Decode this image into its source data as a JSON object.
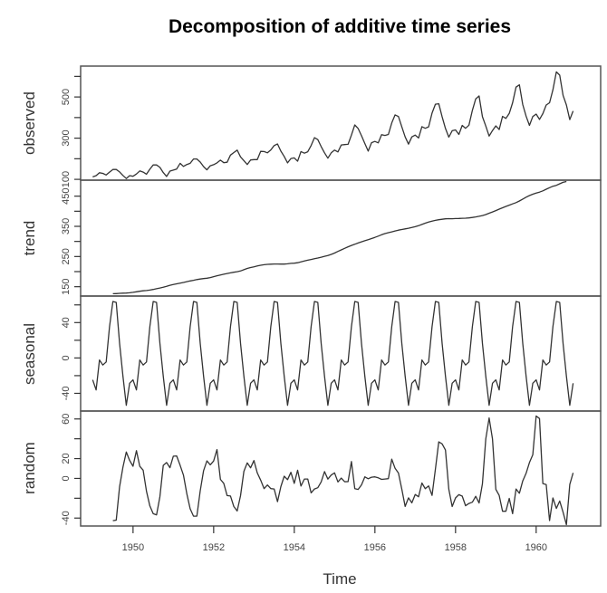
{
  "chart_data": {
    "type": "line",
    "title": "Decomposition of additive time series",
    "xlabel": "Time",
    "x_start": 1949.0,
    "x_step": 0.0833333,
    "xlim": [
      1948.7,
      1961.6
    ],
    "x_ticks": [
      1950,
      1952,
      1954,
      1956,
      1958,
      1960
    ],
    "x_tick_labels": [
      "1950",
      "1952",
      "1954",
      "1956",
      "1958",
      "1960"
    ],
    "grid": false,
    "colors": {
      "line": "#333333",
      "frame": "#555555"
    },
    "panels": [
      {
        "name": "observed",
        "ylabel": "observed",
        "ylim": [
          96,
          650
        ],
        "minor_ticks": [
          100,
          200,
          300,
          400,
          500,
          600
        ],
        "tick_labels": [
          {
            "value": 100,
            "label": "100"
          },
          {
            "value": 300,
            "label": "300"
          },
          {
            "value": 500,
            "label": "500"
          }
        ],
        "values": [
          112,
          118,
          132,
          129,
          121,
          135,
          148,
          148,
          136,
          119,
          104,
          118,
          115,
          126,
          141,
          135,
          125,
          149,
          170,
          170,
          158,
          133,
          114,
          140,
          145,
          150,
          178,
          163,
          172,
          178,
          199,
          199,
          184,
          162,
          146,
          166,
          171,
          180,
          193,
          181,
          183,
          218,
          230,
          242,
          209,
          191,
          172,
          194,
          196,
          196,
          236,
          235,
          229,
          243,
          264,
          272,
          237,
          211,
          180,
          201,
          204,
          188,
          235,
          227,
          234,
          264,
          302,
          293,
          259,
          229,
          203,
          229,
          242,
          233,
          267,
          269,
          270,
          315,
          364,
          347,
          312,
          274,
          237,
          278,
          284,
          277,
          317,
          313,
          318,
          374,
          413,
          405,
          355,
          306,
          271,
          306,
          315,
          301,
          356,
          348,
          355,
          422,
          465,
          467,
          404,
          347,
          305,
          336,
          340,
          318,
          362,
          348,
          363,
          435,
          491,
          505,
          404,
          359,
          310,
          337,
          360,
          342,
          406,
          396,
          420,
          472,
          548,
          559,
          463,
          407,
          362,
          405,
          417,
          391,
          419,
          461,
          472,
          535,
          622,
          606,
          508,
          461,
          390,
          432
        ]
      },
      {
        "name": "trend",
        "ylabel": "trend",
        "ylim": [
          119,
          503
        ],
        "minor_ticks": [
          150,
          200,
          250,
          300,
          350,
          400,
          450
        ],
        "tick_labels": [
          {
            "value": 150,
            "label": "150"
          },
          {
            "value": 250,
            "label": "250"
          },
          {
            "value": 350,
            "label": "350"
          },
          {
            "value": 450,
            "label": "450"
          }
        ],
        "offset": 6,
        "values": [
          126.79,
          127.25,
          127.96,
          128.58,
          129.0,
          129.75,
          131.25,
          133.08,
          134.92,
          136.42,
          137.42,
          138.75,
          140.92,
          143.17,
          145.71,
          148.42,
          151.54,
          154.71,
          157.12,
          159.54,
          161.83,
          164.12,
          166.67,
          169.08,
          171.25,
          173.58,
          175.46,
          176.83,
          178.04,
          180.17,
          183.12,
          186.21,
          189.04,
          191.29,
          193.58,
          195.83,
          198.04,
          199.75,
          202.21,
          206.25,
          210.42,
          213.38,
          215.83,
          218.5,
          220.92,
          222.92,
          224.08,
          224.71,
          225.33,
          225.33,
          224.96,
          224.92,
          225.79,
          227.17,
          228.0,
          229.5,
          232.25,
          234.96,
          237.79,
          240.29,
          242.67,
          245.0,
          247.75,
          250.67,
          253.33,
          256.88,
          261.54,
          266.83,
          271.92,
          277.08,
          282.17,
          286.62,
          290.67,
          294.67,
          298.75,
          302.33,
          305.71,
          309.38,
          313.42,
          317.58,
          322.08,
          326.04,
          328.88,
          331.71,
          334.62,
          337.38,
          339.62,
          341.67,
          343.71,
          346.04,
          348.71,
          352.25,
          356.42,
          360.5,
          364.25,
          367.29,
          369.92,
          371.88,
          373.42,
          374.79,
          375.5,
          375.33,
          375.67,
          376.17,
          376.58,
          377.04,
          378.0,
          379.5,
          381.21,
          383.17,
          385.62,
          389.04,
          393.38,
          397.75,
          402.25,
          406.92,
          411.46,
          416.0,
          420.25,
          424.33,
          428.71,
          434.08,
          440.29,
          446.46,
          452.0,
          456.58,
          460.5,
          463.54,
          467.67,
          472.92,
          478.04,
          482.79,
          486.04,
          490.96,
          495.71,
          498.62
        ]
      },
      {
        "name": "seasonal",
        "ylabel": "seasonal",
        "ylim": [
          -60,
          70
        ],
        "minor_ticks": [
          -40,
          -20,
          0,
          20,
          40,
          60
        ],
        "tick_labels": [
          {
            "value": -40,
            "label": "-40"
          },
          {
            "value": 0,
            "label": "0"
          },
          {
            "value": 40,
            "label": "40"
          }
        ],
        "pattern": [
          -24.75,
          -36.19,
          -2.24,
          -8.04,
          -4.51,
          35.4,
          63.83,
          62.82,
          16.52,
          -20.64,
          -53.59,
          -28.62
        ],
        "years": 12
      },
      {
        "name": "random",
        "ylabel": "random",
        "ylim": [
          -48,
          68
        ],
        "minor_ticks": [
          -40,
          -20,
          0,
          20,
          40,
          60
        ],
        "tick_labels": [
          {
            "value": -40,
            "label": "-40"
          },
          {
            "value": 0,
            "label": "0"
          },
          {
            "value": 20,
            "label": "20"
          },
          {
            "value": 60,
            "label": "60"
          }
        ],
        "offset": 6,
        "values": [
          -42.6,
          -42.1,
          -8.4,
          11.4,
          26.6,
          18.1,
          12.3,
          28.0,
          12.2,
          8.4,
          -13.0,
          -27.7,
          -35.6,
          -36.8,
          -18.4,
          13.2,
          16.0,
          10.8,
          22.4,
          22.7,
          13.3,
          3.3,
          -15.4,
          -30.6,
          -38.0,
          -38.0,
          -12.6,
          7.8,
          17.7,
          13.7,
          17.6,
          29.1,
          -1.0,
          -5.0,
          -17.3,
          -17.8,
          -28.4,
          -32.8,
          -17.4,
          7.2,
          15.7,
          10.7,
          18.0,
          5.5,
          -1.7,
          -10.3,
          -6.6,
          -10.3,
          -10.6,
          -23.4,
          -8.3,
          2.2,
          -1.2,
          6.2,
          -5.0,
          8.3,
          -7.7,
          -0.6,
          -0.6,
          -14.6,
          -10.6,
          -9.4,
          -3.5,
          6.9,
          -0.7,
          3.4,
          5.6,
          -3.5,
          0.3,
          -3.3,
          -3.2,
          17.0,
          -10.3,
          -11.1,
          -6.5,
          1.6,
          -0.3,
          1.2,
          1.6,
          0.6,
          -1.0,
          -0.6,
          -0.2,
          19.4,
          10.2,
          5.4,
          -10.8,
          -28.3,
          -19.6,
          -24.6,
          -16.2,
          -18.5,
          -4.6,
          -10.4,
          -7.5,
          -17.1,
          9.4,
          36.9,
          34.8,
          28.6,
          -10.9,
          -28.4,
          -19.7,
          -16.4,
          -17.9,
          -27.5,
          -25.3,
          -24.0,
          -18.0,
          -24.8,
          -5.3,
          39.9,
          61.0,
          39.9,
          -11.0,
          -17.1,
          -33.1,
          -33.1,
          -20.1,
          -35.6,
          -10.6,
          -14.9,
          -2.5,
          5.2,
          16.0,
          23.9,
          63.0,
          60.4,
          -5.2,
          -6.2,
          -42.5,
          -19.7,
          -30.3,
          -22.8,
          -34.0,
          -46.7,
          -6.2,
          5.6
        ]
      }
    ]
  }
}
